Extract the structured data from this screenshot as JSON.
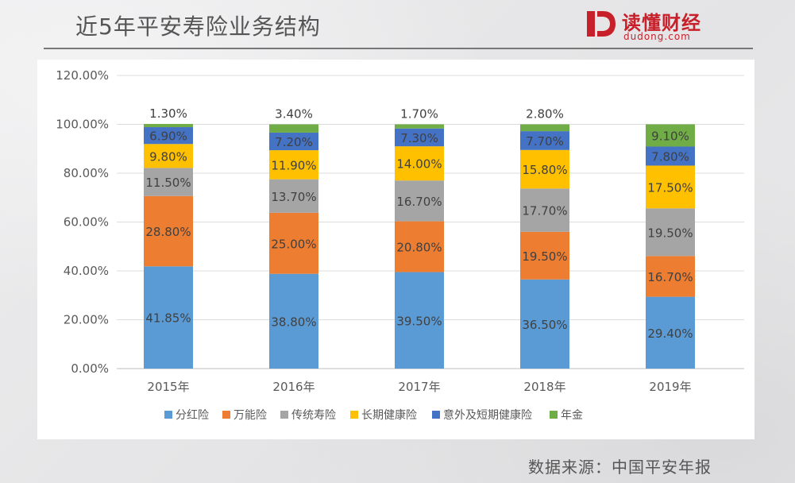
{
  "page": {
    "title": "近5年平安寿险业务结构",
    "source": "数据来源：中国平安年报"
  },
  "logo": {
    "name": "读懂财经",
    "domain": "dudong.com",
    "color": "#c8202a"
  },
  "chart_data": {
    "type": "bar",
    "stacked": true,
    "title": "",
    "xlabel": "",
    "ylabel": "",
    "ylim": [
      0,
      120
    ],
    "yticks": [
      "0.00%",
      "20.00%",
      "40.00%",
      "60.00%",
      "80.00%",
      "100.00%",
      "120.00%"
    ],
    "grid": true,
    "legend_position": "bottom",
    "categories": [
      "2015年",
      "2016年",
      "2017年",
      "2018年",
      "2019年"
    ],
    "series": [
      {
        "name": "分红险",
        "color": "#5b9bd5",
        "values": [
          41.85,
          38.8,
          39.5,
          36.5,
          29.4
        ],
        "labels": [
          "41.85%",
          "38.80%",
          "39.50%",
          "36.50%",
          "29.40%"
        ]
      },
      {
        "name": "万能险",
        "color": "#ed7d31",
        "values": [
          28.8,
          25.0,
          20.8,
          19.5,
          16.7
        ],
        "labels": [
          "28.80%",
          "25.00%",
          "20.80%",
          "19.50%",
          "16.70%"
        ]
      },
      {
        "name": "传统寿险",
        "color": "#a5a5a5",
        "values": [
          11.5,
          13.7,
          16.7,
          17.7,
          19.5
        ],
        "labels": [
          "11.50%",
          "13.70%",
          "16.70%",
          "17.70%",
          "19.50%"
        ]
      },
      {
        "name": "长期健康险",
        "color": "#ffc000",
        "values": [
          9.8,
          11.9,
          14.0,
          15.8,
          17.5
        ],
        "labels": [
          "9.80%",
          "11.90%",
          "14.00%",
          "15.80%",
          "17.50%"
        ]
      },
      {
        "name": "意外及短期健康险",
        "color": "#4472c4",
        "values": [
          6.9,
          7.2,
          7.3,
          7.7,
          7.8
        ],
        "labels": [
          "6.90%",
          "7.20%",
          "7.30%",
          "7.70%",
          "7.80%"
        ]
      },
      {
        "name": "年金",
        "color": "#70ad47",
        "values": [
          1.3,
          3.4,
          1.7,
          2.8,
          9.1
        ],
        "labels": [
          "1.30%",
          "3.40%",
          "1.70%",
          "2.80%",
          "9.10%"
        ]
      }
    ]
  }
}
